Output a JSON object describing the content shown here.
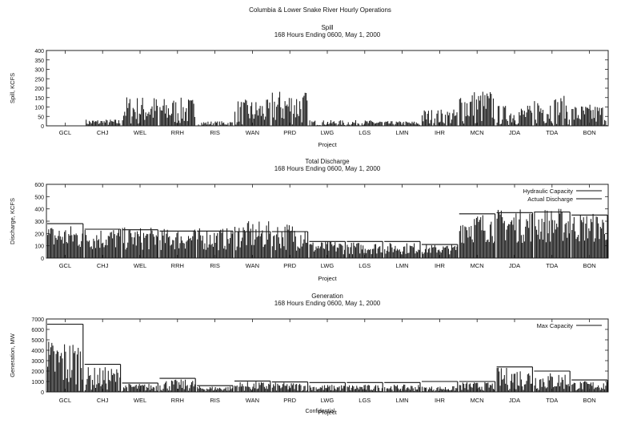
{
  "page": {
    "title": "Columbia & Lower Snake River Hourly Operations",
    "footer": "Confidential"
  },
  "chart_data": [
    {
      "type": "bar",
      "title": "Spill",
      "subtitle": "168 Hours Ending 0600, May 1, 2000",
      "xlabel": "Project",
      "ylabel": "Spill, KCFS",
      "categories": [
        "GCL",
        "CHJ",
        "WEL",
        "RRH",
        "RIS",
        "WAN",
        "PRD",
        "LWG",
        "LGS",
        "LMN",
        "IHR",
        "MCN",
        "JDA",
        "TDA",
        "BON"
      ],
      "yticks": [
        0,
        50,
        100,
        150,
        200,
        250,
        300,
        350,
        400
      ],
      "ylim": [
        0,
        400
      ],
      "series": [
        {
          "name": "",
          "hourly_range": [
            [
              0,
              0
            ],
            [
              0,
              35
            ],
            [
              0,
              160
            ],
            [
              0,
              150
            ],
            [
              0,
              25
            ],
            [
              0,
              140
            ],
            [
              0,
              190
            ],
            [
              0,
              30
            ],
            [
              0,
              30
            ],
            [
              0,
              25
            ],
            [
              0,
              90
            ],
            [
              0,
              195
            ],
            [
              0,
              110
            ],
            [
              0,
              160
            ],
            [
              0,
              115
            ]
          ]
        }
      ],
      "grid": false
    },
    {
      "type": "bar",
      "title": "Total Discharge",
      "subtitle": "168 Hours Ending 0600, May 1, 2000",
      "xlabel": "Project",
      "ylabel": "Discharge, KCFS",
      "categories": [
        "GCL",
        "CHJ",
        "WEL",
        "RRH",
        "RIS",
        "WAN",
        "PRD",
        "LWG",
        "LGS",
        "LMN",
        "IHR",
        "MCN",
        "JDA",
        "TDA",
        "BON"
      ],
      "yticks": [
        0,
        100,
        200,
        300,
        400,
        500,
        600
      ],
      "ylim": [
        0,
        600
      ],
      "series": [
        {
          "name": "Hydraulic Capacity",
          "values": [
            280,
            235,
            230,
            220,
            220,
            215,
            215,
            135,
            135,
            135,
            110,
            360,
            370,
            375,
            350
          ]
        },
        {
          "name": "Actual Discharge",
          "hourly_range": [
            [
              60,
              270
            ],
            [
              60,
              250
            ],
            [
              60,
              250
            ],
            [
              60,
              240
            ],
            [
              60,
              245
            ],
            [
              60,
              300
            ],
            [
              60,
              290
            ],
            [
              30,
              140
            ],
            [
              30,
              130
            ],
            [
              30,
              125
            ],
            [
              30,
              110
            ],
            [
              120,
              370
            ],
            [
              120,
              400
            ],
            [
              120,
              410
            ],
            [
              120,
              370
            ]
          ]
        }
      ],
      "legend": "top-right",
      "grid": false
    },
    {
      "type": "bar",
      "title": "Generation",
      "subtitle": "168 Hours Ending 0600, May 1, 2000",
      "xlabel": "Project",
      "ylabel": "Generation, MW",
      "categories": [
        "GCL",
        "CHJ",
        "WEL",
        "RRH",
        "RIS",
        "WAN",
        "PRD",
        "LWG",
        "LGS",
        "LMN",
        "IHR",
        "MCN",
        "JDA",
        "TDA",
        "BON"
      ],
      "yticks": [
        0,
        1000,
        2000,
        3000,
        4000,
        5000,
        6000,
        7000
      ],
      "ylim": [
        0,
        7000
      ],
      "series": [
        {
          "name": "Max Capacity",
          "values": [
            6500,
            2650,
            850,
            1300,
            600,
            1050,
            950,
            900,
            900,
            900,
            1000,
            1000,
            2400,
            2000,
            1150
          ]
        },
        {
          "name": "",
          "hourly_range": [
            [
              100,
              5100
            ],
            [
              100,
              2400
            ],
            [
              50,
              800
            ],
            [
              50,
              1200
            ],
            [
              50,
              550
            ],
            [
              50,
              1000
            ],
            [
              50,
              900
            ],
            [
              50,
              700
            ],
            [
              50,
              700
            ],
            [
              50,
              700
            ],
            [
              50,
              550
            ],
            [
              100,
              950
            ],
            [
              100,
              2350
            ],
            [
              100,
              1900
            ],
            [
              100,
              1050
            ]
          ]
        }
      ],
      "legend": "top-right",
      "grid": false
    }
  ]
}
